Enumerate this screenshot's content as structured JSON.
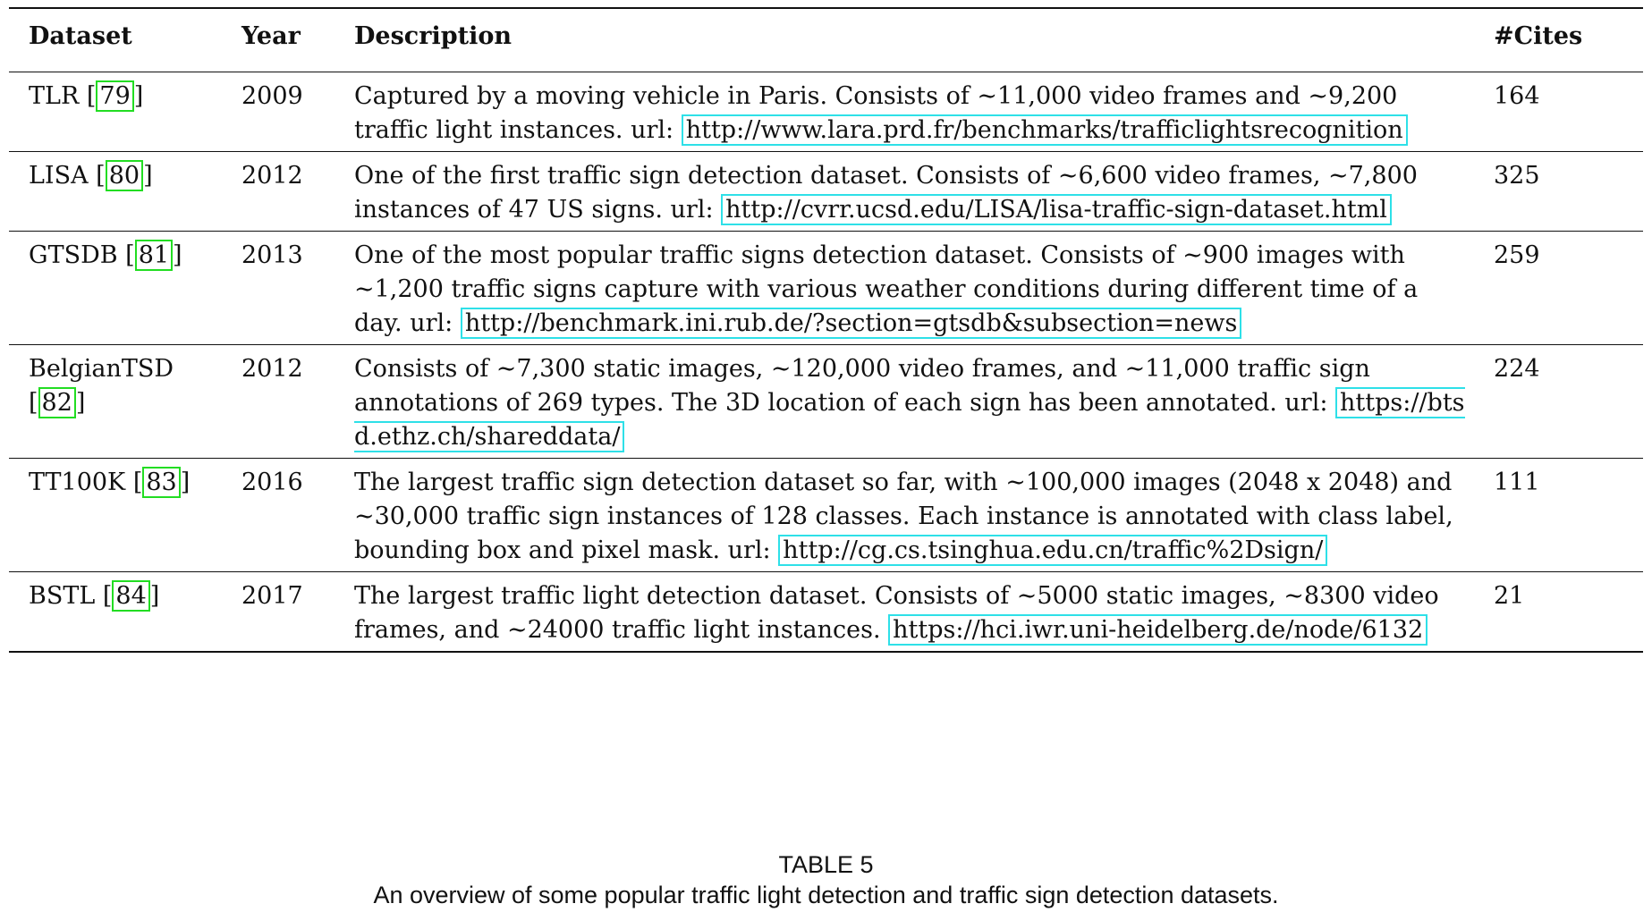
{
  "table": {
    "headers": {
      "dataset": "Dataset",
      "year": "Year",
      "description": "Description",
      "cites": "#Cites"
    },
    "rows": [
      {
        "name": "TLR",
        "ref": "79",
        "year": "2009",
        "desc": "Captured by a moving vehicle in Paris. Consists of ∼11,000 video frames and ∼9,200 traffic light instances. url:",
        "url": "http://www.lara.prd.fr/benchmarks/trafficlightsrecognition",
        "cites": "164"
      },
      {
        "name": "LISA",
        "ref": "80",
        "year": "2012",
        "desc": "One of the first traffic sign detection dataset. Consists of ∼6,600 video frames, ∼7,800 instances of 47 US signs. url:",
        "url": "http://cvrr.ucsd.edu/LISA/lisa-traffic-sign-dataset.html",
        "cites": "325"
      },
      {
        "name": "GTSDB",
        "ref": "81",
        "year": "2013",
        "desc": "One of the most popular traffic signs detection dataset. Consists of ∼900 images with ∼1,200 traffic signs capture with various weather conditions during different time of a day. url:",
        "url": "http://benchmark.ini.rub.de/?section=gtsdb&subsection=news",
        "cites": "259"
      },
      {
        "name": "BelgianTSD",
        "ref": "82",
        "year": "2012",
        "desc": "Consists of ∼7,300 static images, ∼120,000 video frames, and ∼11,000 traffic sign annotations of 269 types. The 3D location of each sign has been annotated. url:",
        "url": "https://btsd.ethz.ch/shareddata/",
        "cites": "224"
      },
      {
        "name": "TT100K",
        "ref": "83",
        "year": "2016",
        "desc": "The largest traffic sign detection dataset so far, with ∼100,000 images (2048 x 2048) and ∼30,000 traffic sign instances of 128 classes. Each instance is annotated with class label, bounding box and pixel mask. url:",
        "url": "http://cg.cs.tsinghua.edu.cn/traffic%2Dsign/",
        "cites": "111"
      },
      {
        "name": "BSTL",
        "ref": "84",
        "year": "2017",
        "desc": "The largest traffic light detection dataset. Consists of ∼5000 static images, ∼8300 video frames, and ∼24000 traffic light instances.",
        "url": "https://hci.iwr.uni-heidelberg.de/node/6132",
        "cites": "21"
      }
    ]
  },
  "caption": {
    "label": "TABLE 5",
    "text": "An overview of some popular traffic light detection and traffic sign detection datasets."
  }
}
